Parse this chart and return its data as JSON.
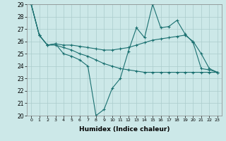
{
  "xlabel": "Humidex (Indice chaleur)",
  "xlim_min": -0.5,
  "xlim_max": 23.5,
  "ylim_min": 20,
  "ylim_max": 29,
  "yticks": [
    20,
    21,
    22,
    23,
    24,
    25,
    26,
    27,
    28,
    29
  ],
  "xticks": [
    0,
    1,
    2,
    3,
    4,
    5,
    6,
    7,
    8,
    9,
    10,
    11,
    12,
    13,
    14,
    15,
    16,
    17,
    18,
    19,
    20,
    21,
    22,
    23
  ],
  "bg_color": "#cce8e8",
  "grid_color": "#aacccc",
  "line_color": "#1a7070",
  "line1_x": [
    0,
    1,
    2,
    3,
    4,
    5,
    6,
    7,
    8,
    9,
    10,
    11,
    12,
    13,
    14,
    15,
    16,
    17,
    18,
    19,
    20,
    21,
    22,
    23
  ],
  "line1_y": [
    29.0,
    26.5,
    25.7,
    25.8,
    25.0,
    24.8,
    24.5,
    24.0,
    20.0,
    20.5,
    22.2,
    23.0,
    25.2,
    27.1,
    26.3,
    29.0,
    27.1,
    27.2,
    27.7,
    26.6,
    25.9,
    23.8,
    23.7,
    23.5
  ],
  "line2_x": [
    0,
    1,
    2,
    3,
    4,
    5,
    6,
    7,
    8,
    9,
    10,
    11,
    12,
    13,
    14,
    15,
    16,
    17,
    18,
    19,
    20,
    21,
    22,
    23
  ],
  "line2_y": [
    29.0,
    26.5,
    25.7,
    25.8,
    25.7,
    25.7,
    25.6,
    25.5,
    25.4,
    25.3,
    25.3,
    25.4,
    25.5,
    25.7,
    25.9,
    26.1,
    26.2,
    26.3,
    26.4,
    26.5,
    26.0,
    25.0,
    23.8,
    23.5
  ],
  "line3_x": [
    0,
    1,
    2,
    3,
    4,
    5,
    6,
    7,
    8,
    9,
    10,
    11,
    12,
    13,
    14,
    15,
    16,
    17,
    18,
    19,
    20,
    21,
    22,
    23
  ],
  "line3_y": [
    29.0,
    26.5,
    25.7,
    25.7,
    25.5,
    25.3,
    25.0,
    24.8,
    24.5,
    24.2,
    24.0,
    23.8,
    23.7,
    23.6,
    23.5,
    23.5,
    23.5,
    23.5,
    23.5,
    23.5,
    23.5,
    23.5,
    23.5,
    23.5
  ]
}
